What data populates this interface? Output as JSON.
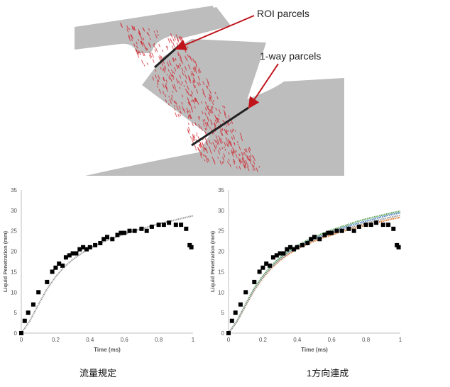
{
  "figure": {
    "annotations": {
      "roi_label": "ROI parcels",
      "oneway_label": "1-way parcels"
    },
    "captions": [
      "流量規定",
      "1方向連成"
    ],
    "colors": {
      "body_gray": "#bdbdbd",
      "parcel_red": "#d0202a",
      "arrow_red": "#c0141c",
      "cut_line": "#222222"
    }
  },
  "chart_data": [
    {
      "type": "scatter",
      "title": "",
      "xlabel": "Time (ms)",
      "ylabel": "Liquid Penetration (mm)",
      "xlim": [
        0,
        1
      ],
      "ylim": [
        0,
        35
      ],
      "xticks": [
        "0",
        "0.2",
        "0.4",
        "0.6",
        "0.8",
        "1"
      ],
      "yticks": [
        "0",
        "5",
        "10",
        "15",
        "20",
        "25",
        "30",
        "35"
      ],
      "grid": false,
      "experiment": {
        "x": [
          0.0,
          0.02,
          0.04,
          0.07,
          0.1,
          0.15,
          0.18,
          0.2,
          0.22,
          0.24,
          0.26,
          0.28,
          0.3,
          0.32,
          0.34,
          0.36,
          0.38,
          0.4,
          0.43,
          0.46,
          0.48,
          0.5,
          0.53,
          0.56,
          0.58,
          0.6,
          0.63,
          0.66,
          0.7,
          0.73,
          0.76,
          0.8,
          0.83,
          0.86,
          0.9,
          0.93,
          0.96,
          0.98,
          0.99
        ],
        "y": [
          0.0,
          3.0,
          5.0,
          7.0,
          10.0,
          12.5,
          15.0,
          16.0,
          17.0,
          16.5,
          18.5,
          19.0,
          19.5,
          19.5,
          20.5,
          21.0,
          20.5,
          21.0,
          21.5,
          22.0,
          23.0,
          23.5,
          23.0,
          24.0,
          24.5,
          24.5,
          25.0,
          25.0,
          25.5,
          25.0,
          26.0,
          26.5,
          26.5,
          27.0,
          26.5,
          26.5,
          25.5,
          21.5,
          21.0
        ]
      },
      "series": [
        {
          "color": "#9a9a9a",
          "x": [
            0,
            0.05,
            0.1,
            0.15,
            0.2,
            0.25,
            0.3,
            0.35,
            0.4,
            0.45,
            0.5,
            0.55,
            0.6,
            0.65,
            0.7,
            0.75,
            0.8,
            0.85,
            0.9,
            0.95,
            1.0
          ],
          "y": [
            0,
            3.0,
            7.0,
            10.8,
            13.8,
            16.2,
            18.0,
            19.5,
            20.8,
            21.8,
            22.7,
            23.5,
            24.2,
            24.9,
            25.5,
            26.1,
            26.7,
            27.2,
            27.7,
            28.2,
            28.7
          ]
        }
      ]
    },
    {
      "type": "scatter",
      "title": "",
      "xlabel": "Time (ms)",
      "ylabel": "Liquid Penetration (mm)",
      "xlim": [
        0,
        1
      ],
      "ylim": [
        0,
        35
      ],
      "xticks": [
        "0",
        "0.2",
        "0.4",
        "0.6",
        "0.8",
        "1"
      ],
      "yticks": [
        "0",
        "5",
        "10",
        "15",
        "20",
        "25",
        "30",
        "35"
      ],
      "grid": false,
      "experiment": {
        "x": [
          0.0,
          0.02,
          0.04,
          0.07,
          0.1,
          0.15,
          0.18,
          0.2,
          0.22,
          0.24,
          0.26,
          0.28,
          0.3,
          0.32,
          0.34,
          0.36,
          0.38,
          0.4,
          0.43,
          0.46,
          0.48,
          0.5,
          0.53,
          0.56,
          0.58,
          0.6,
          0.63,
          0.66,
          0.7,
          0.73,
          0.76,
          0.8,
          0.83,
          0.86,
          0.9,
          0.93,
          0.96,
          0.98,
          0.99
        ],
        "y": [
          0.0,
          3.0,
          5.0,
          7.0,
          10.0,
          12.5,
          15.0,
          16.0,
          17.0,
          16.5,
          18.5,
          19.0,
          19.5,
          19.5,
          20.5,
          21.0,
          20.5,
          21.0,
          21.5,
          22.0,
          23.0,
          23.5,
          23.0,
          24.0,
          24.5,
          24.5,
          25.0,
          25.0,
          25.5,
          25.0,
          26.0,
          26.5,
          26.5,
          27.0,
          26.5,
          26.5,
          25.5,
          21.5,
          21.0
        ]
      },
      "series": [
        {
          "color": "#e07a2e",
          "x": [
            0,
            0.05,
            0.1,
            0.15,
            0.2,
            0.25,
            0.3,
            0.35,
            0.4,
            0.45,
            0.5,
            0.55,
            0.6,
            0.65,
            0.7,
            0.75,
            0.8,
            0.85,
            0.9,
            0.95,
            1.0
          ],
          "y": [
            0,
            2.9,
            6.8,
            10.5,
            13.5,
            15.9,
            17.8,
            19.3,
            20.6,
            21.6,
            22.5,
            23.3,
            24.0,
            24.7,
            25.3,
            25.9,
            26.4,
            26.9,
            27.4,
            27.9,
            28.3
          ]
        },
        {
          "color": "#4a7fc0",
          "x": [
            0,
            0.05,
            0.1,
            0.15,
            0.2,
            0.25,
            0.3,
            0.35,
            0.4,
            0.45,
            0.5,
            0.55,
            0.6,
            0.65,
            0.7,
            0.75,
            0.8,
            0.85,
            0.9,
            0.95,
            1.0
          ],
          "y": [
            0,
            3.0,
            7.0,
            10.8,
            13.8,
            16.3,
            18.2,
            19.8,
            21.1,
            22.2,
            23.1,
            24.0,
            24.8,
            25.5,
            26.2,
            26.8,
            27.4,
            27.9,
            28.5,
            29.0,
            29.4
          ]
        },
        {
          "color": "#5aa05a",
          "x": [
            0,
            0.05,
            0.1,
            0.15,
            0.2,
            0.25,
            0.3,
            0.35,
            0.4,
            0.45,
            0.5,
            0.55,
            0.6,
            0.65,
            0.7,
            0.75,
            0.8,
            0.85,
            0.9,
            0.95,
            1.0
          ],
          "y": [
            0,
            3.0,
            7.1,
            11.0,
            14.0,
            16.5,
            18.5,
            20.1,
            21.4,
            22.5,
            23.5,
            24.4,
            25.2,
            25.9,
            26.6,
            27.3,
            27.9,
            28.4,
            28.9,
            29.4,
            29.8
          ]
        },
        {
          "color": "#9a9a9a",
          "x": [
            0,
            0.05,
            0.1,
            0.15,
            0.2,
            0.25,
            0.3,
            0.35,
            0.4,
            0.45,
            0.5,
            0.55,
            0.6,
            0.65,
            0.7,
            0.75,
            0.8,
            0.85,
            0.9,
            0.95,
            1.0
          ],
          "y": [
            0,
            2.9,
            6.9,
            10.6,
            13.6,
            16.1,
            18.0,
            19.6,
            20.9,
            21.9,
            22.8,
            23.6,
            24.4,
            25.1,
            25.7,
            26.3,
            26.9,
            27.4,
            27.9,
            28.4,
            28.8
          ]
        }
      ]
    }
  ]
}
